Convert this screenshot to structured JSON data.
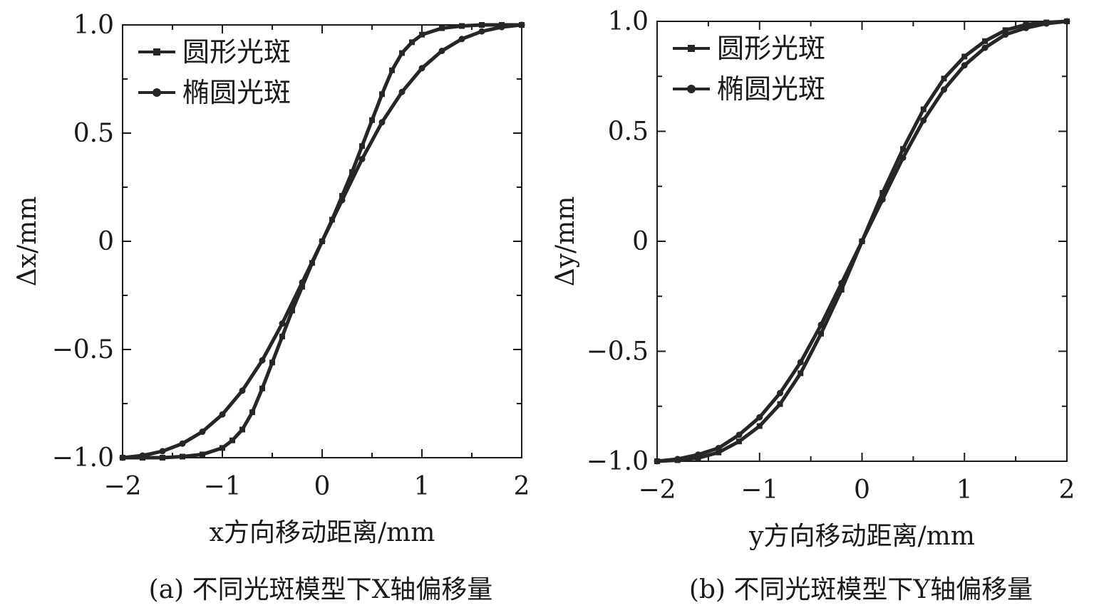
{
  "chart_data": [
    {
      "type": "line",
      "panel_caption": "(a) 不同光斑模型下X轴偏移量",
      "xlabel": "x方向移动距离/mm",
      "ylabel": "Δx/mm",
      "xlim": [
        -2,
        2
      ],
      "ylim": [
        -1.0,
        1.0
      ],
      "xticks": [
        "−2",
        "−1",
        "0",
        "1",
        "2"
      ],
      "yticks": [
        "1.0",
        "0.5",
        "0",
        "−0.5",
        "−1.0"
      ],
      "legend_position": "top-left",
      "series": [
        {
          "name": "圆形光斑",
          "marker": "square",
          "x": [
            -2.0,
            -1.8,
            -1.6,
            -1.4,
            -1.2,
            -1.0,
            -0.9,
            -0.8,
            -0.7,
            -0.6,
            -0.5,
            -0.4,
            -0.3,
            -0.2,
            -0.1,
            0.0,
            0.1,
            0.2,
            0.3,
            0.4,
            0.5,
            0.6,
            0.7,
            0.8,
            0.9,
            1.0,
            1.2,
            1.4,
            1.6,
            1.8,
            2.0
          ],
          "y": [
            -1.0,
            -1.0,
            -1.0,
            -0.995,
            -0.985,
            -0.955,
            -0.92,
            -0.87,
            -0.79,
            -0.68,
            -0.56,
            -0.44,
            -0.32,
            -0.21,
            -0.1,
            0.0,
            0.1,
            0.21,
            0.32,
            0.44,
            0.56,
            0.68,
            0.79,
            0.87,
            0.92,
            0.955,
            0.985,
            0.995,
            1.0,
            1.0,
            1.0
          ]
        },
        {
          "name": "椭圆光斑",
          "marker": "circle",
          "x": [
            -2.0,
            -1.8,
            -1.6,
            -1.4,
            -1.2,
            -1.0,
            -0.8,
            -0.6,
            -0.4,
            -0.2,
            0.0,
            0.2,
            0.4,
            0.6,
            0.8,
            1.0,
            1.2,
            1.4,
            1.6,
            1.8,
            2.0
          ],
          "y": [
            -1.0,
            -0.99,
            -0.97,
            -0.935,
            -0.88,
            -0.8,
            -0.69,
            -0.55,
            -0.38,
            -0.19,
            0.0,
            0.19,
            0.38,
            0.55,
            0.69,
            0.8,
            0.88,
            0.935,
            0.97,
            0.99,
            1.0
          ]
        }
      ]
    },
    {
      "type": "line",
      "panel_caption": "(b) 不同光斑模型下Y轴偏移量",
      "xlabel": "y方向移动距离/mm",
      "ylabel": "Δy/mm",
      "xlim": [
        -2,
        2
      ],
      "ylim": [
        -1.0,
        1.0
      ],
      "xticks": [
        "−2",
        "−1",
        "0",
        "1",
        "2"
      ],
      "yticks": [
        "1.0",
        "0.5",
        "0",
        "−0.5",
        "−1.0"
      ],
      "legend_position": "top-left",
      "series": [
        {
          "name": "圆形光斑",
          "marker": "square",
          "x": [
            -2.0,
            -1.8,
            -1.6,
            -1.4,
            -1.2,
            -1.0,
            -0.8,
            -0.6,
            -0.4,
            -0.2,
            0.0,
            0.2,
            0.4,
            0.6,
            0.8,
            1.0,
            1.2,
            1.4,
            1.6,
            1.8,
            2.0
          ],
          "y": [
            -1.0,
            -0.995,
            -0.985,
            -0.96,
            -0.91,
            -0.84,
            -0.74,
            -0.6,
            -0.42,
            -0.22,
            0.0,
            0.22,
            0.42,
            0.6,
            0.74,
            0.84,
            0.91,
            0.96,
            0.985,
            0.995,
            1.0
          ]
        },
        {
          "name": "椭圆光斑",
          "marker": "circle",
          "x": [
            -2.0,
            -1.8,
            -1.6,
            -1.4,
            -1.2,
            -1.0,
            -0.8,
            -0.6,
            -0.4,
            -0.2,
            0.0,
            0.2,
            0.4,
            0.6,
            0.8,
            1.0,
            1.2,
            1.4,
            1.6,
            1.8,
            2.0
          ],
          "y": [
            -1.0,
            -0.99,
            -0.97,
            -0.94,
            -0.88,
            -0.8,
            -0.69,
            -0.55,
            -0.38,
            -0.19,
            0.0,
            0.19,
            0.38,
            0.55,
            0.69,
            0.8,
            0.88,
            0.94,
            0.97,
            0.99,
            1.0
          ]
        }
      ]
    }
  ],
  "colors": {
    "line": "#262626",
    "axis": "#1a1a1a"
  }
}
